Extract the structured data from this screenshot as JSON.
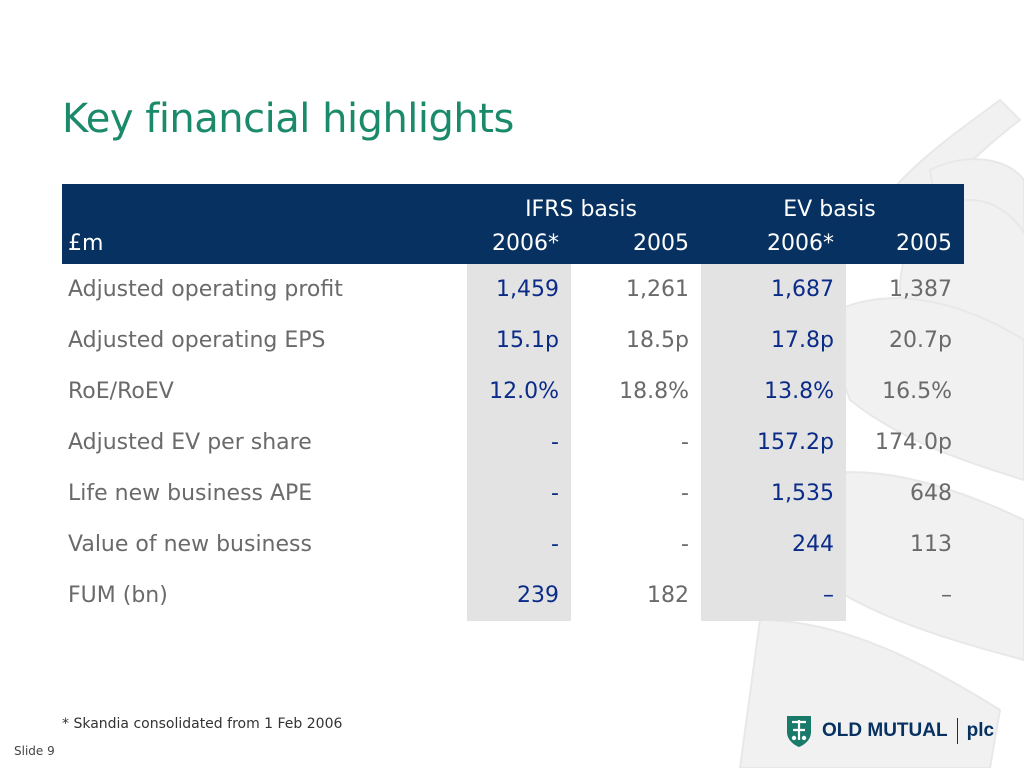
{
  "title": "Key financial highlights",
  "table": {
    "currency_label": "£m",
    "groups": [
      "IFRS basis",
      "EV basis"
    ],
    "years": [
      "2006*",
      "2005",
      "2006*",
      "2005"
    ],
    "rows": [
      {
        "label": "Adjusted operating profit",
        "values": [
          "1,459",
          "1,261",
          "1,687",
          "1,387"
        ]
      },
      {
        "label": "Adjusted operating EPS",
        "values": [
          "15.1p",
          "18.5p",
          "17.8p",
          "20.7p"
        ]
      },
      {
        "label": "RoE/RoEV",
        "values": [
          "12.0%",
          "18.8%",
          "13.8%",
          "16.5%"
        ]
      },
      {
        "label": "Adjusted EV per share",
        "values": [
          "-",
          "-",
          "157.2p",
          "174.0p"
        ]
      },
      {
        "label": "Life new business APE",
        "values": [
          "-",
          "-",
          "1,535",
          "648"
        ]
      },
      {
        "label": "Value of new business",
        "values": [
          "-",
          "-",
          "244",
          "113"
        ]
      },
      {
        "label": "FUM (bn)",
        "values": [
          "239",
          "182",
          "–",
          "–"
        ]
      }
    ]
  },
  "footnote": "* Skandia consolidated from 1 Feb 2006",
  "slide_number": "Slide 9",
  "logo": {
    "name": "OLD MUTUAL",
    "suffix": "plc"
  },
  "colors": {
    "title": "#1a8a6a",
    "header_bg": "#073160",
    "highlight_bg": "#e3e3e3",
    "highlight_text": "#0a2b88"
  }
}
